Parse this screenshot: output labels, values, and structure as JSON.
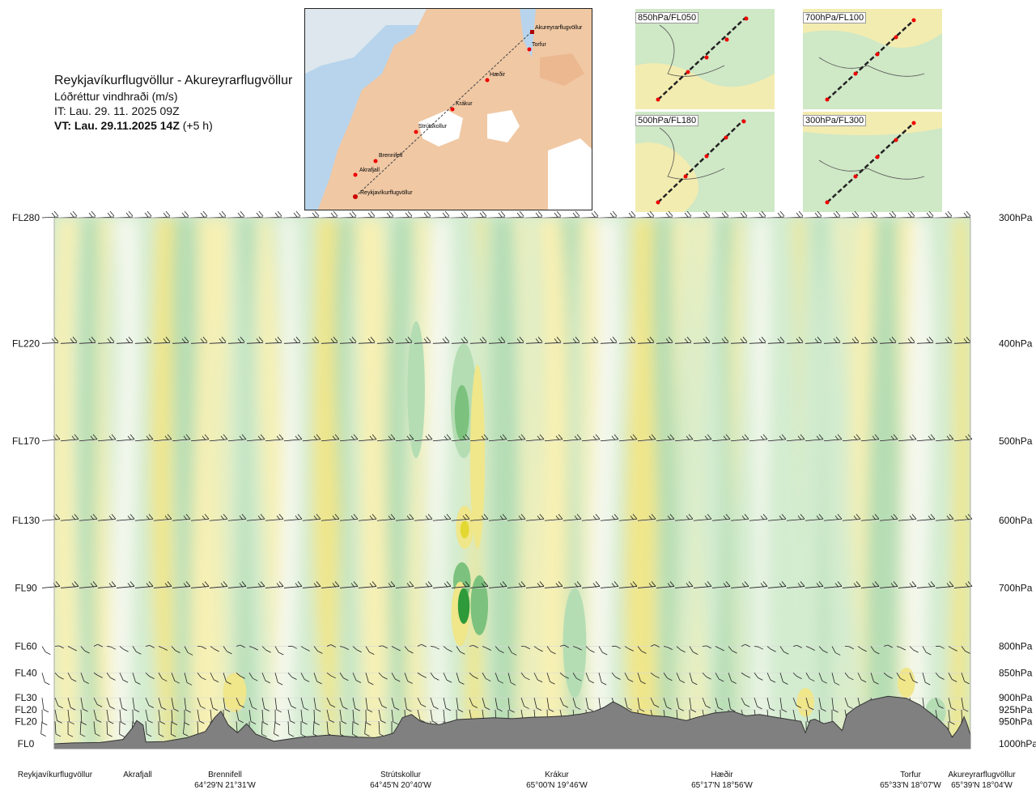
{
  "header": {
    "route": "Reykjavíkurflugvöllur - Akureyrarflugvöllur",
    "variable": "Lóðréttur vindhraði (m/s)",
    "issue_time": "IT: Lau. 29. 11. 2025 09Z",
    "valid_time": "VT: Lau. 29.11.2025 14Z",
    "lead": "(+5 h)"
  },
  "map_labels": [
    "Akureyrarflugvöllur",
    "Torfur",
    "Hæðir",
    "Krákur",
    "Strútskollur",
    "Brennifell",
    "Akrafjall",
    "Reykjavíkurflugvöllur"
  ],
  "mini_maps": [
    "850hPa/FL050",
    "700hPa/FL100",
    "500hPa/FL180",
    "300hPa/FL300"
  ],
  "colors": {
    "up_strong": "#2e9a3a",
    "up_mid": "#7cc27e",
    "up_weak": "#b5ddb4",
    "up_light": "#d3ecd0",
    "neutral": "#f4f8ee",
    "down_light": "#f7f0b4",
    "down_weak": "#f0e68a",
    "down_mid": "#e3d832",
    "terrain": "#808080",
    "sea": "#b7d4ec"
  },
  "chart_data": {
    "type": "heatmap",
    "title": "Lóðréttur vindhraði (m/s)",
    "y_left_levels": [
      {
        "label": "FL280",
        "hpa": 300
      },
      {
        "label": "FL220",
        "hpa": 400
      },
      {
        "label": "FL170",
        "hpa": 500
      },
      {
        "label": "FL130",
        "hpa": 600
      },
      {
        "label": "FL90",
        "hpa": 700
      },
      {
        "label": "FL60",
        "hpa": 800
      },
      {
        "label": "FL40",
        "hpa": 850
      },
      {
        "label": "FL30",
        "hpa": 900
      },
      {
        "label": "FL20",
        "hpa": 925
      },
      {
        "label": "FL20",
        "hpa": 950
      },
      {
        "label": "FL0",
        "hpa": 1000
      }
    ],
    "y_right_labels": [
      "300hPa",
      "400hPa",
      "500hPa",
      "600hPa",
      "700hPa",
      "800hPa",
      "850hPa",
      "900hPa",
      "925hPa",
      "950hPa",
      "1000hPa"
    ],
    "ylim_hpa": [
      1000,
      300
    ],
    "waypoints": [
      {
        "name": "Reykjavíkurflugvöllur",
        "coord": "",
        "pos": 0.0
      },
      {
        "name": "Akrafjall",
        "coord": "",
        "pos": 0.09
      },
      {
        "name": "Brennifell",
        "coord": "64°29'N 21°31'W",
        "pos": 0.185
      },
      {
        "name": "Strútskollur",
        "coord": "64°45'N 20°40'W",
        "pos": 0.42
      },
      {
        "name": "Krákur",
        "coord": "65°00'N 19°46'W",
        "pos": 0.585
      },
      {
        "name": "Hæðir",
        "coord": "65°17'N 18°56'W",
        "pos": 0.793
      },
      {
        "name": "Torfur",
        "coord": "65°33'N 18°07'W",
        "pos": 0.935
      },
      {
        "name": "Akureyrarflugvöllur",
        "coord": "65°39'N 18°04'W",
        "pos": 1.0
      }
    ],
    "terrain_hpa": [
      [
        0.0,
        1000
      ],
      [
        0.02,
        998
      ],
      [
        0.05,
        997
      ],
      [
        0.075,
        990
      ],
      [
        0.085,
        965
      ],
      [
        0.09,
        948
      ],
      [
        0.097,
        958
      ],
      [
        0.1,
        996
      ],
      [
        0.12,
        995
      ],
      [
        0.145,
        986
      ],
      [
        0.165,
        972
      ],
      [
        0.175,
        942
      ],
      [
        0.182,
        928
      ],
      [
        0.19,
        958
      ],
      [
        0.2,
        975
      ],
      [
        0.21,
        955
      ],
      [
        0.22,
        978
      ],
      [
        0.24,
        994
      ],
      [
        0.27,
        985
      ],
      [
        0.3,
        980
      ],
      [
        0.33,
        985
      ],
      [
        0.35,
        986
      ],
      [
        0.36,
        982
      ],
      [
        0.37,
        976
      ],
      [
        0.375,
        960
      ],
      [
        0.38,
        942
      ],
      [
        0.39,
        935
      ],
      [
        0.4,
        950
      ],
      [
        0.41,
        955
      ],
      [
        0.42,
        957
      ],
      [
        0.43,
        952
      ],
      [
        0.44,
        946
      ],
      [
        0.46,
        944
      ],
      [
        0.48,
        942
      ],
      [
        0.5,
        944
      ],
      [
        0.52,
        941
      ],
      [
        0.54,
        940
      ],
      [
        0.56,
        938
      ],
      [
        0.575,
        934
      ],
      [
        0.59,
        928
      ],
      [
        0.6,
        920
      ],
      [
        0.61,
        908
      ],
      [
        0.62,
        918
      ],
      [
        0.63,
        930
      ],
      [
        0.65,
        937
      ],
      [
        0.67,
        940
      ],
      [
        0.69,
        948
      ],
      [
        0.7,
        942
      ],
      [
        0.72,
        932
      ],
      [
        0.74,
        928
      ],
      [
        0.755,
        938
      ],
      [
        0.77,
        935
      ],
      [
        0.79,
        942
      ],
      [
        0.8,
        945
      ],
      [
        0.815,
        950
      ],
      [
        0.82,
        975
      ],
      [
        0.825,
        948
      ],
      [
        0.83,
        945
      ],
      [
        0.84,
        955
      ],
      [
        0.85,
        950
      ],
      [
        0.86,
        970
      ],
      [
        0.865,
        935
      ],
      [
        0.875,
        920
      ],
      [
        0.89,
        905
      ],
      [
        0.91,
        897
      ],
      [
        0.93,
        901
      ],
      [
        0.945,
        915
      ],
      [
        0.955,
        930
      ],
      [
        0.965,
        945
      ],
      [
        0.975,
        965
      ],
      [
        0.98,
        985
      ],
      [
        0.985,
        972
      ],
      [
        0.99,
        955
      ],
      [
        0.993,
        940
      ],
      [
        0.997,
        960
      ],
      [
        1.0,
        980
      ]
    ],
    "wind_barb_levels_hpa": [
      300,
      400,
      500,
      600,
      700,
      800,
      850,
      900,
      925,
      950
    ],
    "shading_legend": {
      "up": "green",
      "down": "yellow"
    }
  }
}
